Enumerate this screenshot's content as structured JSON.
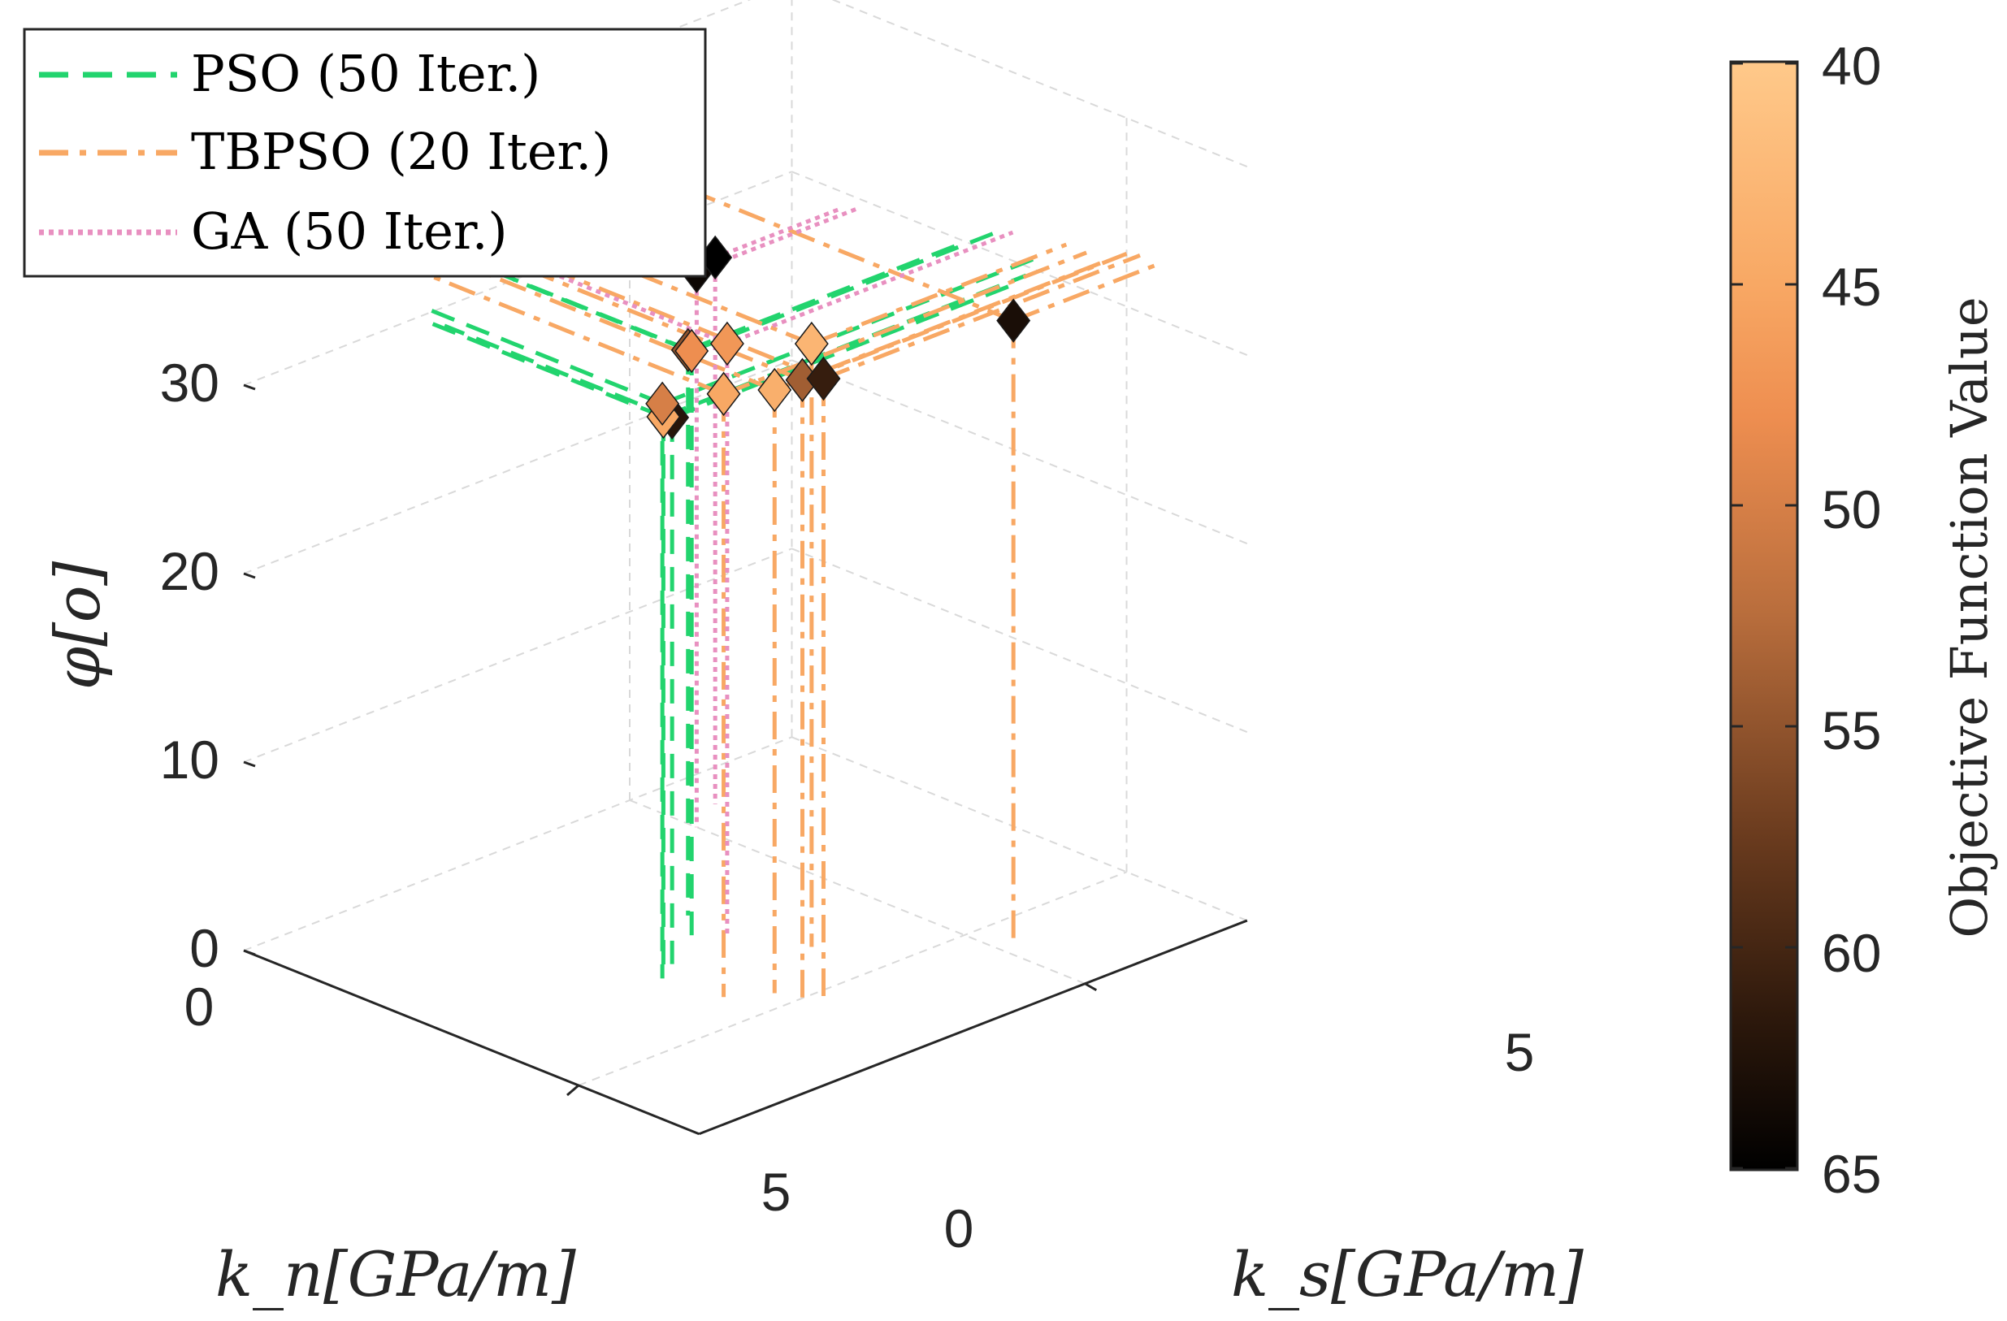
{
  "chart_data": {
    "type": "scatter",
    "title": "",
    "axes": {
      "kn": {
        "label": "k_n[GPa/m]",
        "ticks": [
          "0",
          "5"
        ]
      },
      "ks": {
        "label": "k_s[GPa/m]",
        "ticks": [
          "0",
          "5"
        ]
      },
      "phi": {
        "label": "φ[o]",
        "ticks": [
          "0",
          "10",
          "20",
          "30"
        ]
      }
    },
    "legend": {
      "location": "top-left",
      "entries": [
        {
          "name": "PSO (50 Iter.)",
          "color": "#22d46e",
          "dash": "dashed"
        },
        {
          "name": "TBPSO (20 Iter.)",
          "color": "#f8a864",
          "dash": "dashdot"
        },
        {
          "name": "GA (50 Iter.)",
          "color": "#e890c0",
          "dash": "dotted"
        }
      ]
    },
    "colorbar": {
      "label": "Objective Function Value",
      "ticks": [
        "40",
        "45",
        "50",
        "55",
        "60",
        "65"
      ],
      "range": [
        40,
        65
      ]
    },
    "series": [
      {
        "name": "PSO (50 Iter.)",
        "points": [
          {
            "kn": 3.4,
            "ks": 2.6,
            "phi": 29.0,
            "f": 62
          },
          {
            "kn": 3.5,
            "ks": 2.4,
            "phi": 29.5,
            "f": 45
          },
          {
            "kn": 3.6,
            "ks": 2.3,
            "phi": 30.5,
            "f": 50
          },
          {
            "kn": 2.6,
            "ks": 3.5,
            "phi": 30.0,
            "f": 55
          },
          {
            "kn": 3.0,
            "ks": 3.2,
            "phi": 31.0,
            "f": 48
          }
        ]
      },
      {
        "name": "TBPSO (20 Iter.)",
        "points": [
          {
            "kn": 4.4,
            "ks": 2.4,
            "phi": 32.0,
            "f": 45
          },
          {
            "kn": 4.7,
            "ks": 2.8,
            "phi": 32.0,
            "f": 44
          },
          {
            "kn": 5.0,
            "ks": 2.9,
            "phi": 32.8,
            "f": 54
          },
          {
            "kn": 5.2,
            "ks": 3.0,
            "phi": 33.0,
            "f": 61
          },
          {
            "kn": 5.5,
            "ks": 5.2,
            "phi": 33.0,
            "f": 63
          },
          {
            "kn": 4.1,
            "ks": 3.8,
            "phi": 32.0,
            "f": 43
          }
        ]
      },
      {
        "name": "GA (50 Iter.)",
        "points": [
          {
            "kn": 1.0,
            "ks": 5.0,
            "phi": 29.5,
            "f": 64
          },
          {
            "kn": 0.7,
            "ks": 5.5,
            "phi": 29.0,
            "f": 65
          },
          {
            "kn": 3.3,
            "ks": 3.4,
            "phi": 31.5,
            "f": 47
          }
        ]
      }
    ]
  }
}
